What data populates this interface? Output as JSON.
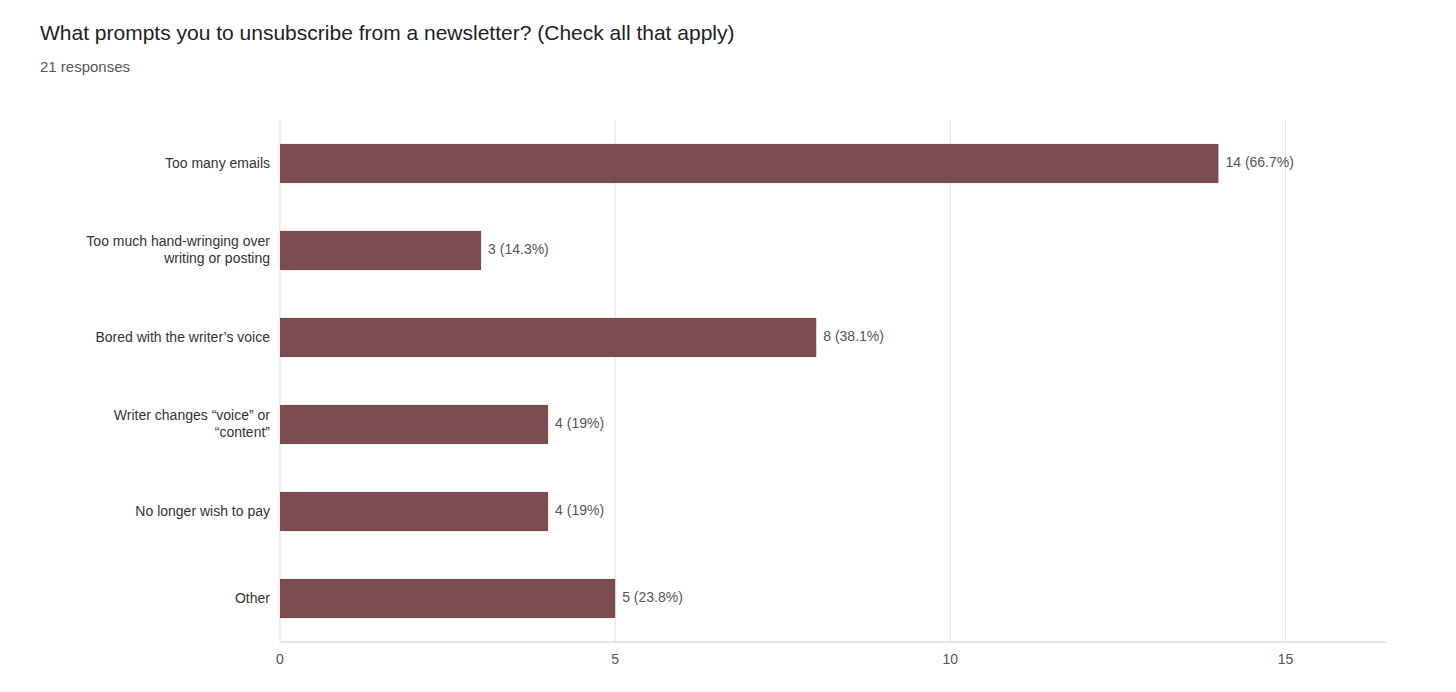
{
  "chart_data": {
    "type": "bar",
    "orientation": "horizontal",
    "title": "What prompts you to unsubscribe from a newsletter? (Check all that apply)",
    "subtitle": "21 responses",
    "categories": [
      "Too many emails",
      "Too much hand-wringing over\nwriting or posting",
      "Bored with the writer’s voice",
      "Writer changes “voice” or\n“content”",
      "No longer wish to pay",
      "Other"
    ],
    "values": [
      14,
      3,
      8,
      4,
      4,
      5
    ],
    "value_labels": [
      "14 (66.7%)",
      "3 (14.3%)",
      "8 (38.1%)",
      "4 (19%)",
      "4 (19%)",
      "5 (23.8%)"
    ],
    "data_labels": true,
    "color": "#7B4B52",
    "xlim": [
      0,
      16.5
    ],
    "xticks": [
      0,
      5,
      10,
      15
    ],
    "grid": true
  }
}
